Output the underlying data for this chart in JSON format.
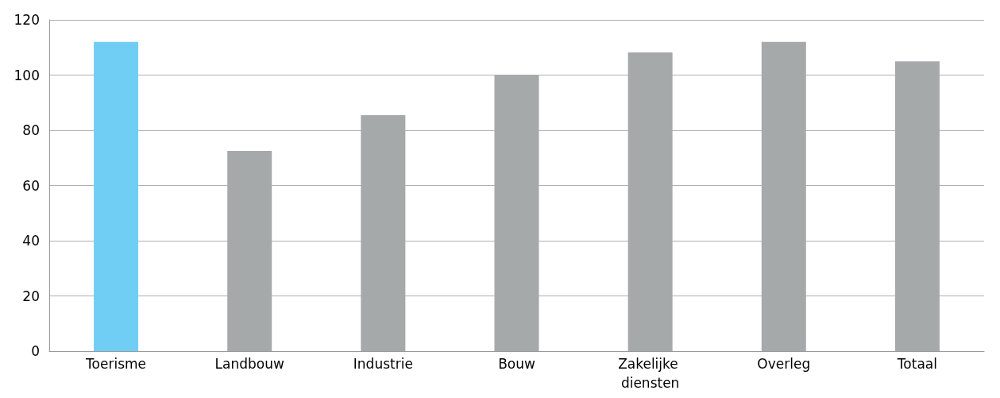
{
  "chart_data": {
    "type": "bar",
    "categories": [
      "Toerisme",
      "Landbouw",
      "Industrie",
      "Bouw",
      "Zakelijke diensten",
      "Overleg",
      "Totaal"
    ],
    "values": [
      112,
      72.5,
      85.5,
      100,
      108.2,
      112,
      105
    ],
    "colors": [
      "#70cdf4",
      "#a6a9aa",
      "#a6a9aa",
      "#a6a9aa",
      "#a6a9aa",
      "#a6a9aa",
      "#a6a9aa"
    ],
    "ylim": [
      0,
      120
    ],
    "yticks": [
      0,
      20,
      40,
      60,
      80,
      100,
      120
    ],
    "grid": "y"
  }
}
